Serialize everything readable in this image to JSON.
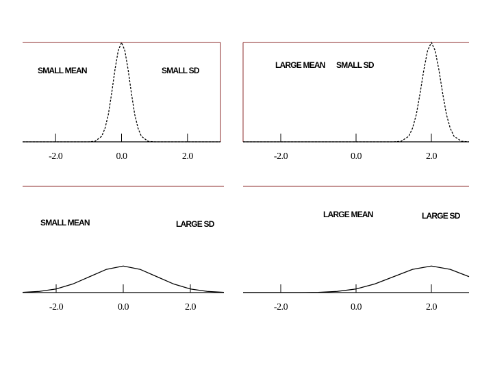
{
  "chart_data": [
    {
      "type": "line",
      "annotations": [
        "SMALL MEAN",
        "SMALL SD"
      ],
      "color": "#000000",
      "line_style": "dotted",
      "x": [
        -3,
        -1,
        -0.8,
        -0.6,
        -0.5,
        -0.4,
        -0.3,
        -0.2,
        -0.1,
        0,
        0.1,
        0.2,
        0.3,
        0.4,
        0.5,
        0.6,
        0.8,
        1,
        3
      ],
      "values": [
        0,
        0,
        0.01,
        0.09,
        0.22,
        0.44,
        0.78,
        1.16,
        1.47,
        1.6,
        1.47,
        1.16,
        0.78,
        0.44,
        0.22,
        0.09,
        0.01,
        0,
        0
      ],
      "xlim": [
        -3,
        3
      ],
      "ylim": [
        0,
        1.6
      ],
      "xticks": [
        {
          "value": -2,
          "label": "-2.0"
        },
        {
          "value": 0,
          "label": "0.0"
        },
        {
          "value": 2,
          "label": "2.0"
        }
      ]
    },
    {
      "type": "line",
      "annotations": [
        "LARGE MEAN",
        "SMALL SD"
      ],
      "color": "#000000",
      "line_style": "dotted",
      "x": [
        -3,
        1,
        1.2,
        1.4,
        1.5,
        1.6,
        1.7,
        1.8,
        1.9,
        2,
        2.1,
        2.2,
        2.3,
        2.4,
        2.5,
        2.6,
        2.8,
        3
      ],
      "values": [
        0,
        0,
        0.01,
        0.09,
        0.22,
        0.44,
        0.78,
        1.16,
        1.47,
        1.6,
        1.47,
        1.16,
        0.78,
        0.44,
        0.22,
        0.09,
        0.01,
        0
      ],
      "xlim": [
        -3,
        3
      ],
      "ylim": [
        0,
        1.6
      ],
      "xticks": [
        {
          "value": -2,
          "label": "-2.0"
        },
        {
          "value": 0,
          "label": "0.0"
        },
        {
          "value": 2,
          "label": "2.0"
        }
      ]
    },
    {
      "type": "line",
      "annotations": [
        "SMALL MEAN",
        "LARGE SD"
      ],
      "color": "#000000",
      "line_style": "solid",
      "x": [
        -3,
        -2.5,
        -2,
        -1.5,
        -1,
        -0.5,
        0,
        0.5,
        1,
        1.5,
        2,
        2.5,
        3
      ],
      "values": [
        0.004,
        0.018,
        0.054,
        0.13,
        0.24,
        0.35,
        0.4,
        0.35,
        0.24,
        0.13,
        0.054,
        0.018,
        0.004
      ],
      "xlim": [
        -3,
        3
      ],
      "ylim": [
        0,
        1.6
      ],
      "xticks": [
        {
          "value": -2,
          "label": "-2.0"
        },
        {
          "value": 0,
          "label": "0.0"
        },
        {
          "value": 2,
          "label": "2.0"
        }
      ]
    },
    {
      "type": "line",
      "annotations": [
        "LARGE MEAN",
        "LARGE SD"
      ],
      "color": "#000000",
      "line_style": "solid",
      "x": [
        -3,
        -2.5,
        -2,
        -1.5,
        -1,
        -0.5,
        0,
        0.5,
        1,
        1.5,
        2,
        2.5,
        3
      ],
      "values": [
        0,
        0,
        0,
        0,
        0.004,
        0.018,
        0.054,
        0.13,
        0.24,
        0.35,
        0.4,
        0.35,
        0.24
      ],
      "xlim": [
        -3,
        3
      ],
      "ylim": [
        0,
        1.6
      ],
      "xticks": [
        {
          "value": -2,
          "label": "-2.0"
        },
        {
          "value": 0,
          "label": "0.0"
        },
        {
          "value": 2,
          "label": "2.0"
        }
      ]
    }
  ]
}
